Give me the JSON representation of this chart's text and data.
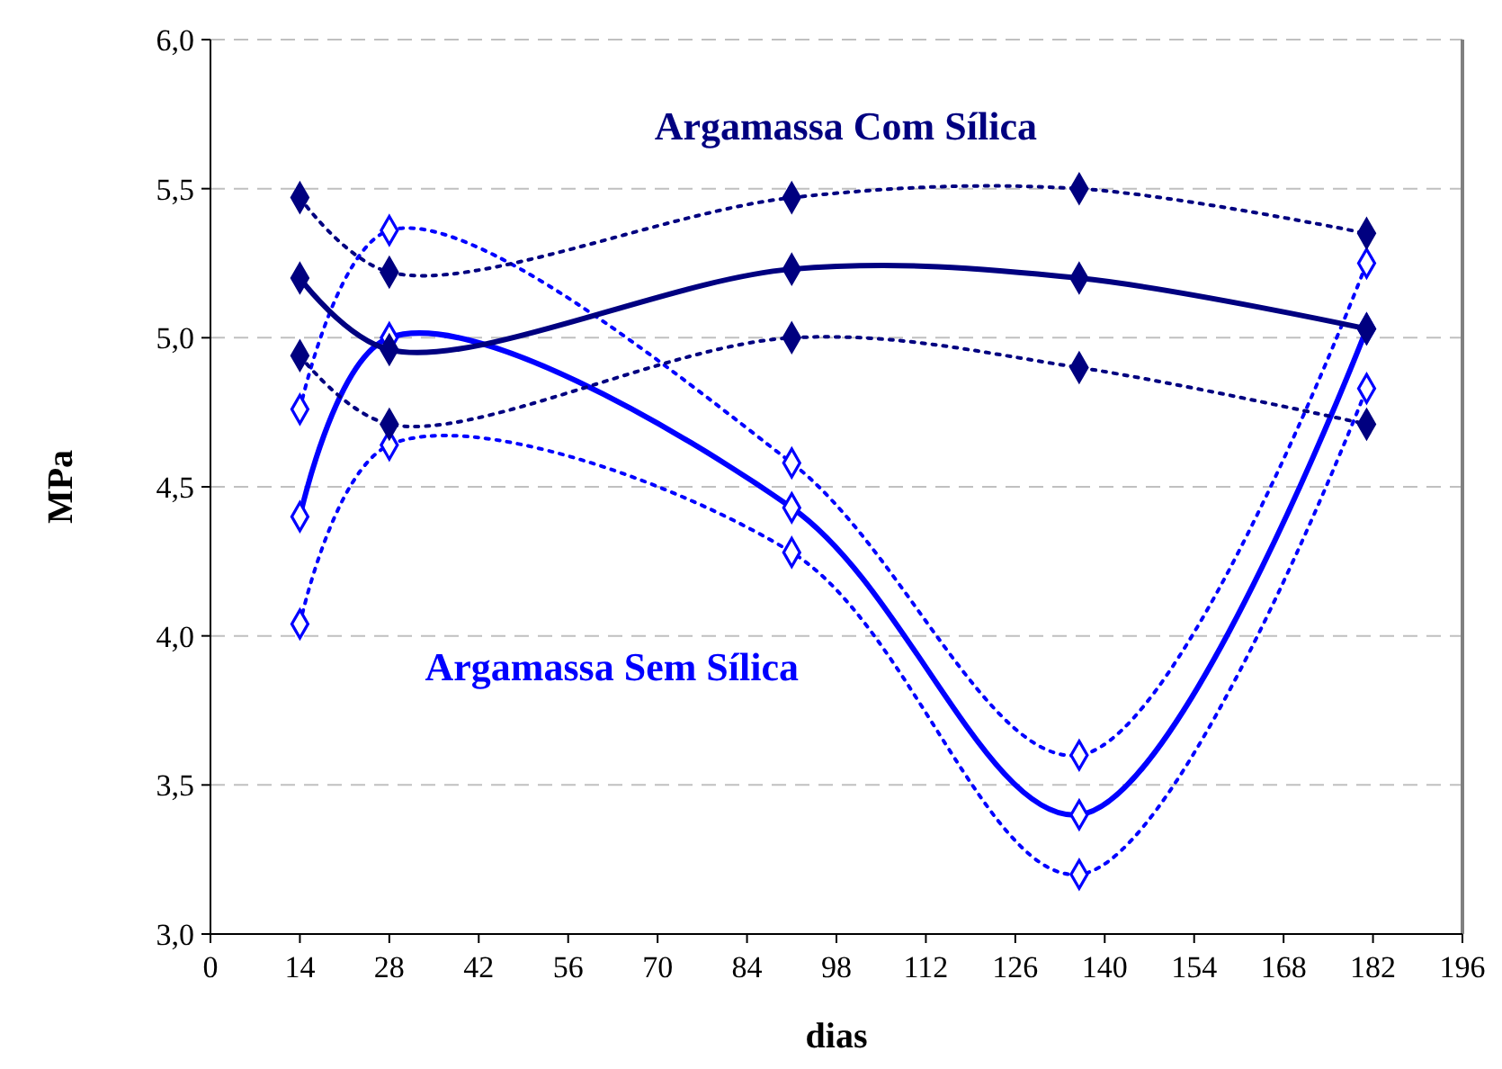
{
  "chart_data": {
    "type": "line",
    "xlabel": "dias",
    "ylabel": "MPa",
    "xlim": [
      0,
      196
    ],
    "xticks": [
      0,
      14,
      28,
      42,
      56,
      70,
      84,
      98,
      112,
      126,
      140,
      154,
      168,
      182,
      196
    ],
    "ylim": [
      3,
      6
    ],
    "yticks": [
      {
        "value": 3,
        "label": "3,0"
      },
      {
        "value": 3.5,
        "label": "3,5"
      },
      {
        "value": 4,
        "label": "4,0"
      },
      {
        "value": 4.5,
        "label": "4,5"
      },
      {
        "value": 5,
        "label": "5,0"
      },
      {
        "value": 5.5,
        "label": "5,5"
      },
      {
        "value": 6,
        "label": "6,0"
      }
    ],
    "grid": "y",
    "marker": "diamond",
    "x": [
      14,
      28,
      91,
      136,
      181
    ],
    "series": [
      {
        "color": "#000080",
        "values": [
          5.47,
          5.22,
          5.47,
          5.5,
          5.35
        ],
        "line_style": "dotted"
      },
      {
        "color": "#000080",
        "values": [
          4.94,
          4.71,
          5.0,
          4.9,
          4.71
        ],
        "line_style": "dotted"
      },
      {
        "name": "Argamassa Com Sílica",
        "color": "#000080",
        "values": [
          5.2,
          4.96,
          5.23,
          5.2,
          5.03
        ],
        "line_style": "solid"
      },
      {
        "color": "#0000ff",
        "values": [
          4.76,
          5.36,
          4.58,
          3.6,
          5.25
        ],
        "line_style": "dotted"
      },
      {
        "color": "#0000ff",
        "values": [
          4.04,
          4.64,
          4.28,
          3.2,
          4.83
        ],
        "line_style": "dotted"
      },
      {
        "name": "Argamassa Sem Sílica",
        "color": "#0000ff",
        "values": [
          4.4,
          5.0,
          4.43,
          3.4,
          5.03
        ],
        "line_style": "solid"
      }
    ]
  }
}
